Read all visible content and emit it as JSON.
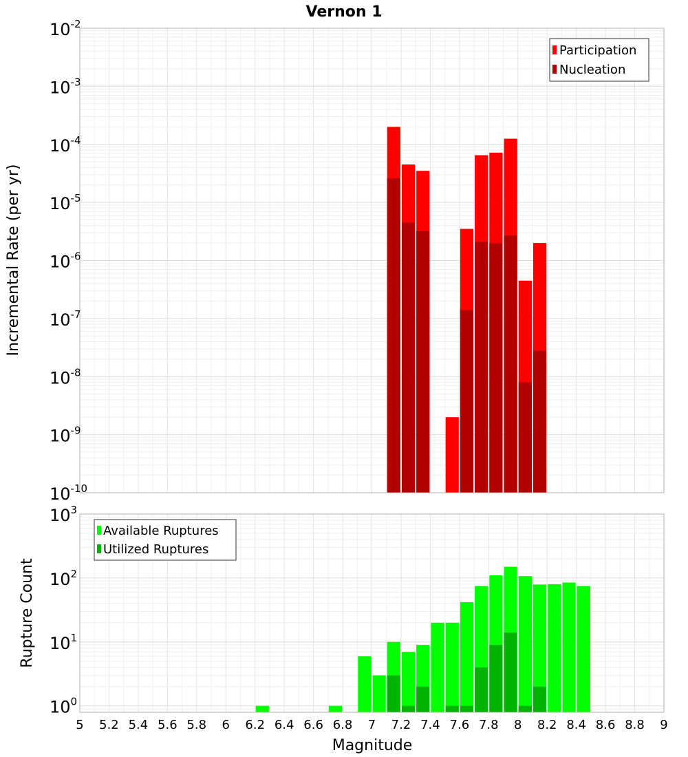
{
  "chart_data": {
    "title": "Vernon 1",
    "xlabel": "Magnitude",
    "xlim": [
      5,
      9
    ],
    "x_ticks": [
      "5",
      "5.2",
      "5.4",
      "5.6",
      "5.8",
      "6",
      "6.2",
      "6.4",
      "6.6",
      "6.8",
      "7",
      "7.2",
      "7.4",
      "7.6",
      "7.8",
      "8",
      "8.2",
      "8.4",
      "8.6",
      "8.8",
      "9"
    ],
    "bar_width": 0.1,
    "panels": [
      {
        "id": "rates",
        "type": "bar",
        "yscale": "log",
        "ylabel": "Incremental Rate (per yr)",
        "ylim_exponents": [
          -10,
          -2
        ],
        "y_tick_exponents": [
          "-2",
          "-3",
          "-4",
          "-5",
          "-6",
          "-7",
          "-8",
          "-9",
          "-10"
        ],
        "legend": {
          "position": "top-right",
          "entries": [
            {
              "label": "Participation",
              "color": "#ff0000"
            },
            {
              "label": "Nucleation",
              "color": "#b30000"
            }
          ]
        },
        "series": [
          {
            "name": "Participation",
            "color": "#ff0000",
            "x": [
              7.15,
              7.25,
              7.35,
              7.55,
              7.65,
              7.75,
              7.85,
              7.95,
              8.05,
              8.15
            ],
            "values": [
              0.0002,
              4.5e-05,
              3.5e-05,
              2e-09,
              3.5e-06,
              6.5e-05,
              7.2e-05,
              0.000125,
              4.5e-07,
              2e-06
            ]
          },
          {
            "name": "Nucleation",
            "color": "#b30000",
            "x": [
              7.15,
              7.25,
              7.35,
              7.65,
              7.75,
              7.85,
              7.95,
              8.05,
              8.15
            ],
            "values": [
              2.6e-05,
              4.5e-06,
              3.2e-06,
              1.4e-07,
              2.1e-06,
              2e-06,
              2.7e-06,
              8e-09,
              2.8e-08
            ]
          }
        ]
      },
      {
        "id": "counts",
        "type": "bar",
        "yscale": "log",
        "ylabel": "Rupture Count",
        "ylim_exponents": [
          -0.1,
          3
        ],
        "y_tick_exponents": [
          "3",
          "2",
          "1",
          "0"
        ],
        "legend": {
          "position": "top-left",
          "entries": [
            {
              "label": "Available Ruptures",
              "color": "#00ff00"
            },
            {
              "label": "Utilized Ruptures",
              "color": "#00b300"
            }
          ]
        },
        "series": [
          {
            "name": "Available Ruptures",
            "color": "#00ff00",
            "x": [
              6.25,
              6.75,
              6.95,
              7.05,
              7.15,
              7.25,
              7.35,
              7.45,
              7.55,
              7.65,
              7.75,
              7.85,
              7.95,
              8.05,
              8.15,
              8.25,
              8.35,
              8.45
            ],
            "values": [
              1,
              1,
              6,
              3,
              10,
              7,
              9,
              20,
              20,
              42,
              75,
              110,
              150,
              107,
              79,
              80,
              85,
              75
            ]
          },
          {
            "name": "Utilized Ruptures",
            "color": "#00b300",
            "x": [
              7.15,
              7.25,
              7.35,
              7.55,
              7.65,
              7.75,
              7.85,
              7.95,
              8.05,
              8.15
            ],
            "values": [
              3,
              1,
              2,
              1,
              1,
              4,
              9,
              14,
              1,
              2
            ]
          }
        ]
      }
    ]
  }
}
